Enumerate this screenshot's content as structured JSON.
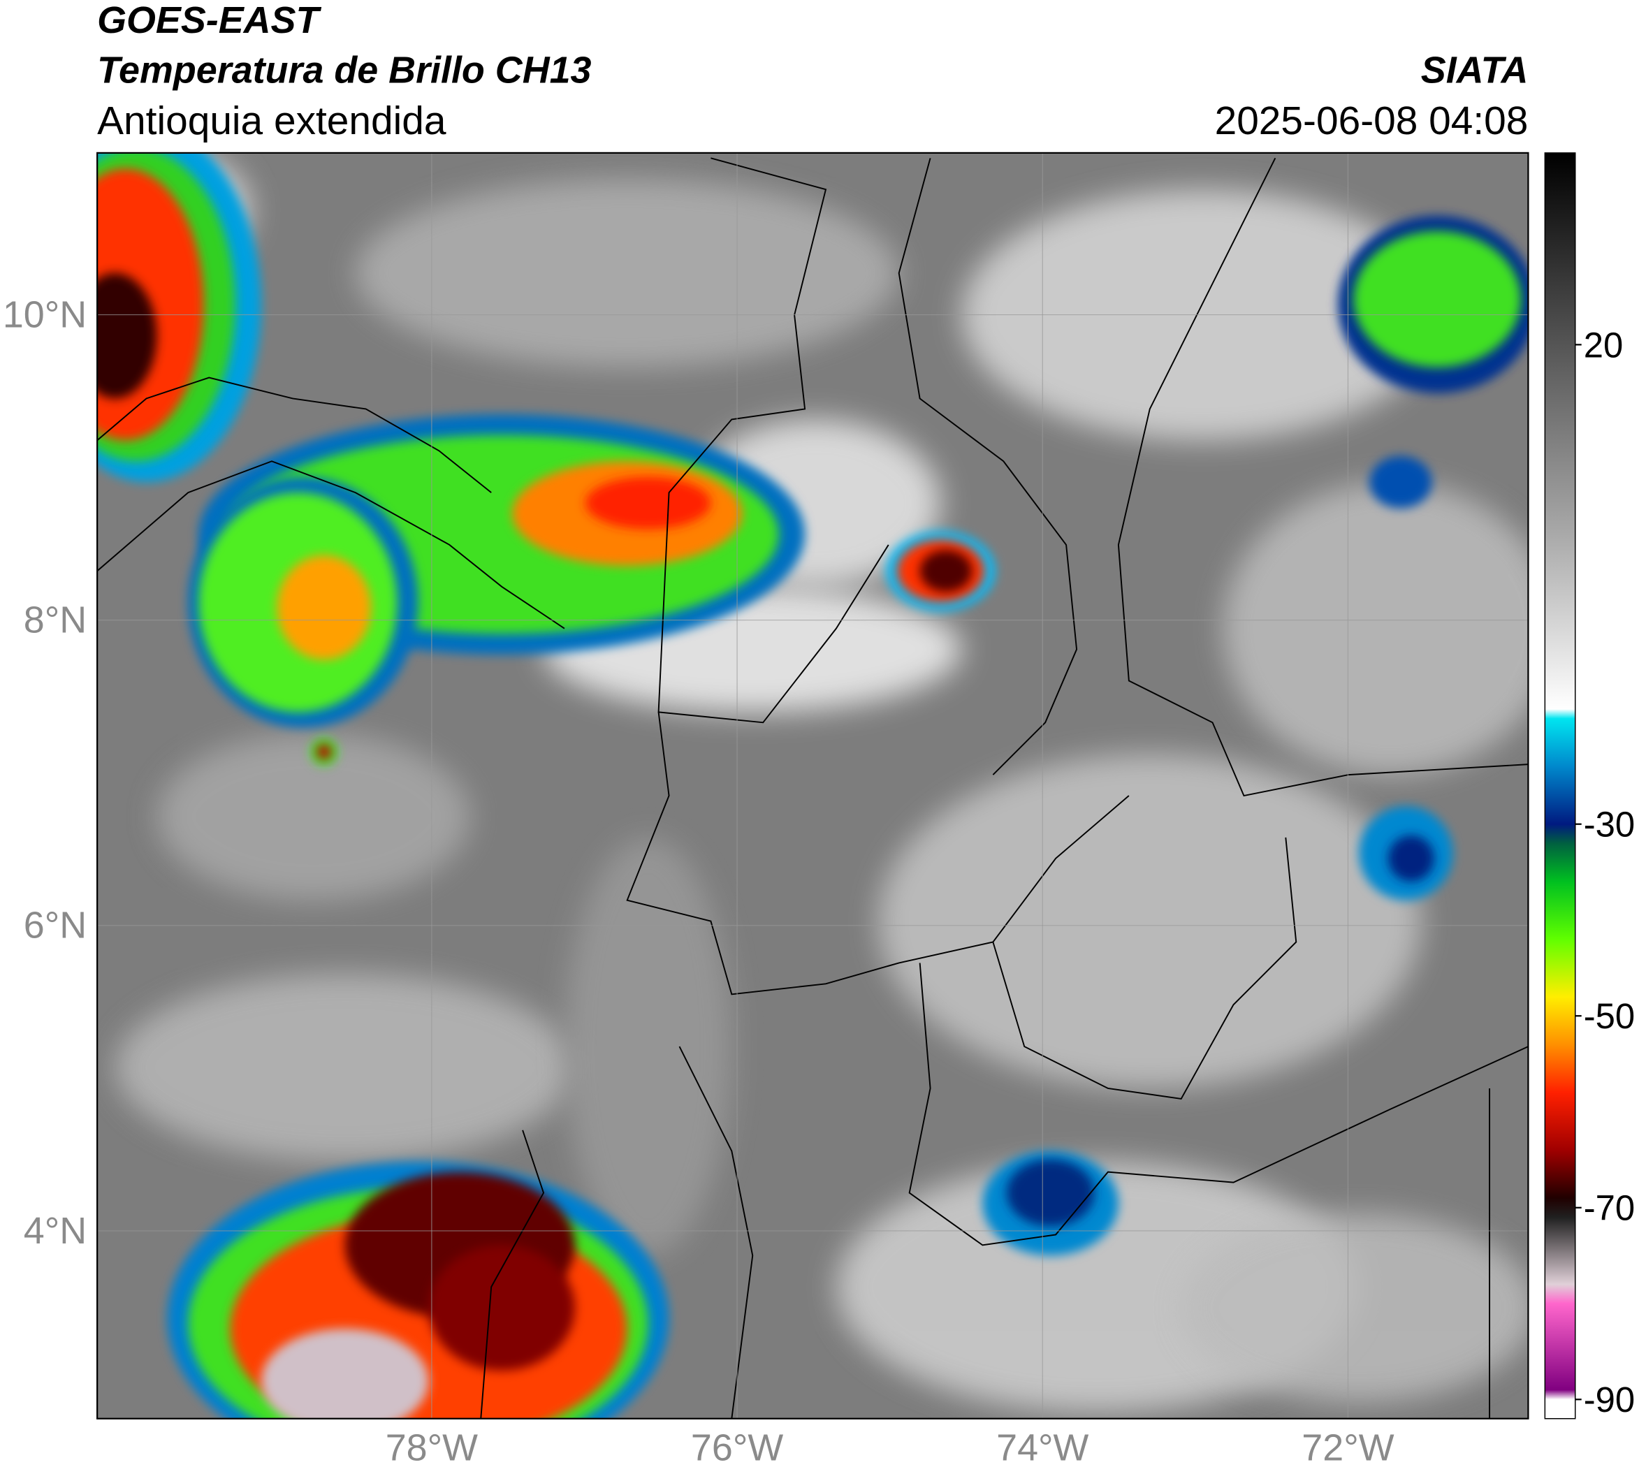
{
  "map": {
    "title": "GOES-EAST",
    "subtitle": "Temperatura de Brillo CH13",
    "region": "Antioquia extendida",
    "source": "SIATA",
    "datetime": "2025-06-08 04:08",
    "lon_range": [
      -80.19,
      -70.82
    ],
    "lat_range": [
      2.77,
      11.06
    ],
    "lat_ticks": [
      {
        "value": 10,
        "label": "10°N"
      },
      {
        "value": 8,
        "label": "8°N"
      },
      {
        "value": 6,
        "label": "6°N"
      },
      {
        "value": 4,
        "label": "4°N"
      }
    ],
    "lon_ticks": [
      {
        "value": -78,
        "label": "78°W"
      },
      {
        "value": -76,
        "label": "76°W"
      },
      {
        "value": -74,
        "label": "74°W"
      },
      {
        "value": -72,
        "label": "72°W"
      }
    ],
    "grid": true,
    "colorbar": {
      "clim": [
        -92,
        40
      ],
      "ticks": [
        20,
        -30,
        -50,
        -70,
        -90
      ],
      "colormap": [
        {
          "value": 40,
          "color": "#000000"
        },
        {
          "value": 20,
          "color": "#555555"
        },
        {
          "value": 0,
          "color": "#aaaaaa"
        },
        {
          "value": -18,
          "color": "#ffffff"
        },
        {
          "value": -19,
          "color": "#00e5f0"
        },
        {
          "value": -24,
          "color": "#0088cc"
        },
        {
          "value": -30,
          "color": "#001a80"
        },
        {
          "value": -32,
          "color": "#006040"
        },
        {
          "value": -36,
          "color": "#00c020"
        },
        {
          "value": -42,
          "color": "#60ff00"
        },
        {
          "value": -48,
          "color": "#ffee00"
        },
        {
          "value": -53,
          "color": "#ff9000"
        },
        {
          "value": -58,
          "color": "#ff2000"
        },
        {
          "value": -64,
          "color": "#a00000"
        },
        {
          "value": -69,
          "color": "#200000"
        },
        {
          "value": -71,
          "color": "#202020"
        },
        {
          "value": -78,
          "color": "#e0d0d8"
        },
        {
          "value": -80,
          "color": "#ff66cc"
        },
        {
          "value": -89,
          "color": "#800080"
        },
        {
          "value": -90,
          "color": "#ffffff"
        },
        {
          "value": -92,
          "color": "#ffffff"
        }
      ]
    }
  }
}
